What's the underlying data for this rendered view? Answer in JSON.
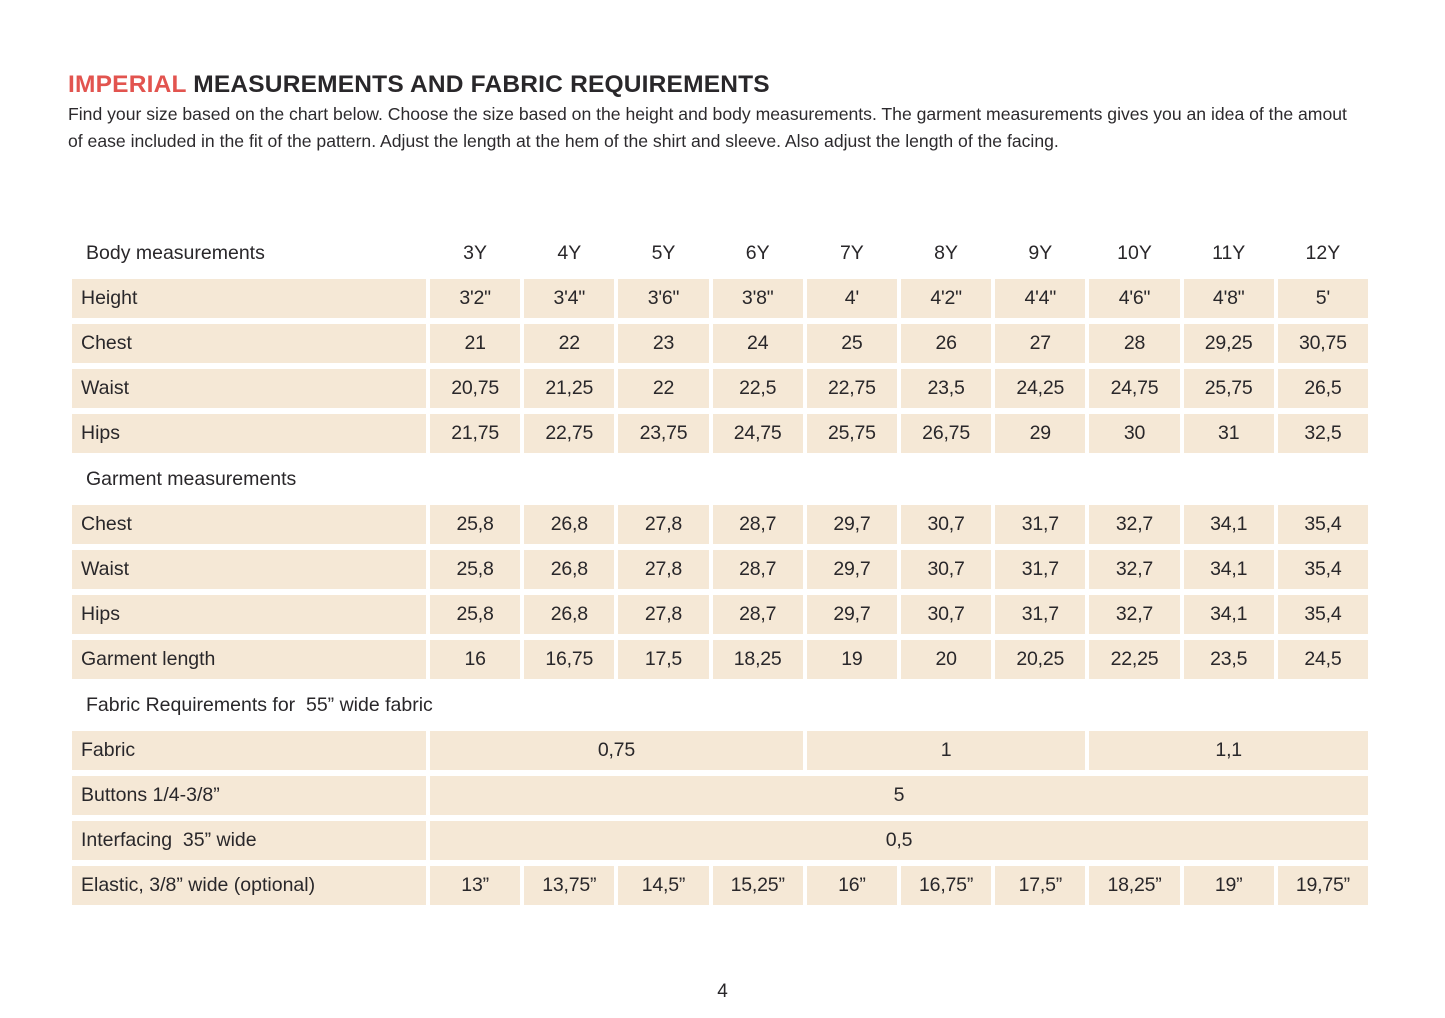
{
  "document": {
    "title": {
      "highlight": "IMPERIAL",
      "rest": " MEASUREMENTS AND FABRIC REQUIREMENTS"
    },
    "intro": "Find your size based on the chart below. Choose the size based on the height and body measurements. The garment measurements gives you an idea of the amout of ease included in the fit of the pattern. Adjust the length at the hem of the shirt and sleeve. Also adjust the length of the facing.",
    "page_number": "4"
  },
  "colors": {
    "accent_red": "#e2544f",
    "cell_beige": "#f5e8d6",
    "text_dark": "#29272a"
  },
  "table": {
    "size_headers": [
      "3Y",
      "4Y",
      "5Y",
      "6Y",
      "7Y",
      "8Y",
      "9Y",
      "10Y",
      "11Y",
      "12Y"
    ],
    "sections": [
      {
        "header": "Body measurements",
        "show_sizes": true,
        "rows": [
          {
            "label": "Height",
            "values": [
              "3'2\"",
              "3'4\"",
              "3'6\"",
              "3'8\"",
              "4'",
              "4'2\"",
              "4'4\"",
              "4'6\"",
              "4'8\"",
              "5'"
            ]
          },
          {
            "label": "Chest",
            "values": [
              "21",
              "22",
              "23",
              "24",
              "25",
              "26",
              "27",
              "28",
              "29,25",
              "30,75"
            ]
          },
          {
            "label": "Waist",
            "values": [
              "20,75",
              "21,25",
              "22",
              "22,5",
              "22,75",
              "23,5",
              "24,25",
              "24,75",
              "25,75",
              "26,5"
            ]
          },
          {
            "label": "Hips",
            "values": [
              "21,75",
              "22,75",
              "23,75",
              "24,75",
              "25,75",
              "26,75",
              "29",
              "30",
              "31",
              "32,5"
            ]
          }
        ]
      },
      {
        "header": "Garment measurements",
        "show_sizes": false,
        "rows": [
          {
            "label": "Chest",
            "values": [
              "25,8",
              "26,8",
              "27,8",
              "28,7",
              "29,7",
              "30,7",
              "31,7",
              "32,7",
              "34,1",
              "35,4"
            ]
          },
          {
            "label": "Waist",
            "values": [
              "25,8",
              "26,8",
              "27,8",
              "28,7",
              "29,7",
              "30,7",
              "31,7",
              "32,7",
              "34,1",
              "35,4"
            ]
          },
          {
            "label": "Hips",
            "values": [
              "25,8",
              "26,8",
              "27,8",
              "28,7",
              "29,7",
              "30,7",
              "31,7",
              "32,7",
              "34,1",
              "35,4"
            ]
          },
          {
            "label": "Garment length",
            "values": [
              "16",
              "16,75",
              "17,5",
              "18,25",
              "19",
              "20",
              "20,25",
              "22,25",
              "23,5",
              "24,5"
            ]
          }
        ]
      },
      {
        "header": "Fabric Requirements for  55” wide fabric",
        "show_sizes": false,
        "rows": [
          {
            "label": "Fabric",
            "cells": [
              {
                "value": "0,75",
                "span": 4
              },
              {
                "value": "1",
                "span": 3
              },
              {
                "value": "1,1",
                "span": 3
              }
            ]
          },
          {
            "label": "Buttons 1/4-3/8”",
            "cells": [
              {
                "value": "5",
                "span": 10
              }
            ]
          },
          {
            "label": "Interfacing  35” wide",
            "cells": [
              {
                "value": "0,5",
                "span": 10
              }
            ]
          },
          {
            "label": "Elastic, 3/8” wide (optional)",
            "values": [
              "13”",
              "13,75”",
              "14,5”",
              "15,25”",
              "16”",
              "16,75”",
              "17,5”",
              "18,25”",
              "19”",
              "19,75”"
            ]
          }
        ]
      }
    ]
  }
}
